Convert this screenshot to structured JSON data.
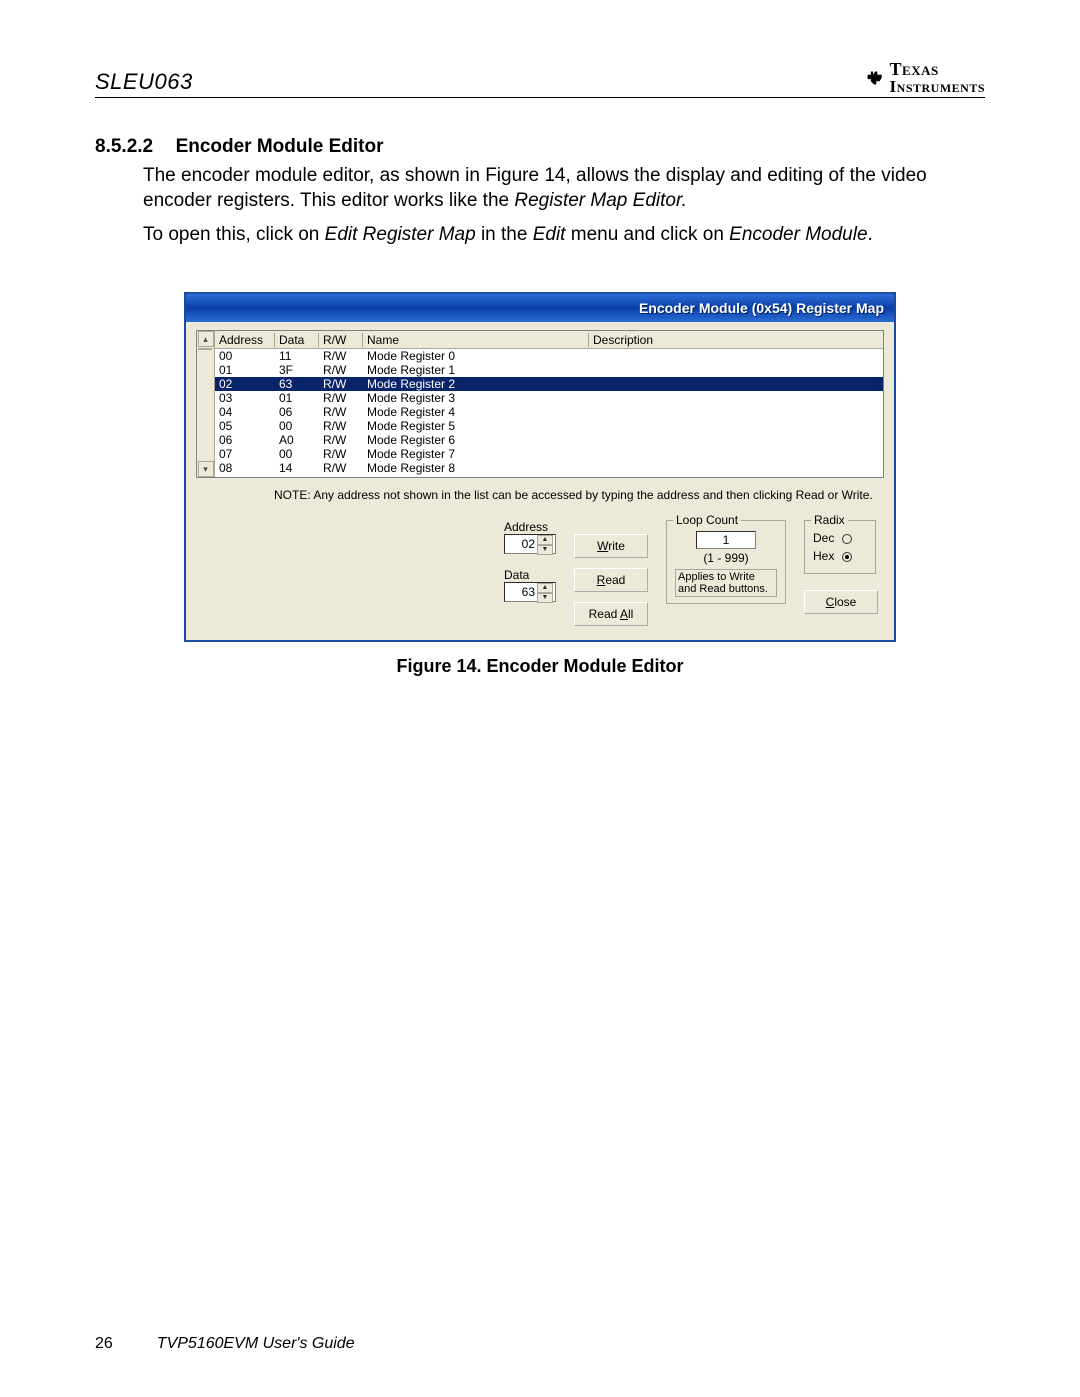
{
  "header": {
    "doc_id": "SLEU063",
    "logo": {
      "line1": "Texas",
      "line2": "Instruments"
    }
  },
  "section": {
    "number": "8.5.2.2",
    "title": "Encoder Module Editor",
    "para1_a": "The encoder module editor, as shown in Figure 14, allows the display and editing of the video encoder registers.  This editor works like the ",
    "para1_ital": "Register Map Editor.",
    "para2_a": "To open this, click on ",
    "para2_i1": "Edit Register Map",
    "para2_b": " in the ",
    "para2_i2": "Edit",
    "para2_c": " menu and click on ",
    "para2_i3": "Encoder Module",
    "para2_d": "."
  },
  "window": {
    "title": "Encoder Module (0x54) Register Map",
    "columns": {
      "address": "Address",
      "data": "Data",
      "rw": "R/W",
      "name": "Name",
      "description": "Description"
    },
    "rows": [
      {
        "addr": "00",
        "data": "11",
        "rw": "R/W",
        "name": "Mode Register 0",
        "selected": false
      },
      {
        "addr": "01",
        "data": "3F",
        "rw": "R/W",
        "name": "Mode Register 1",
        "selected": false
      },
      {
        "addr": "02",
        "data": "63",
        "rw": "R/W",
        "name": "Mode Register 2",
        "selected": true
      },
      {
        "addr": "03",
        "data": "01",
        "rw": "R/W",
        "name": "Mode Register 3",
        "selected": false
      },
      {
        "addr": "04",
        "data": "06",
        "rw": "R/W",
        "name": "Mode Register 4",
        "selected": false
      },
      {
        "addr": "05",
        "data": "00",
        "rw": "R/W",
        "name": "Mode Register 5",
        "selected": false
      },
      {
        "addr": "06",
        "data": "A0",
        "rw": "R/W",
        "name": "Mode Register 6",
        "selected": false
      },
      {
        "addr": "07",
        "data": "00",
        "rw": "R/W",
        "name": "Mode Register 7",
        "selected": false
      },
      {
        "addr": "08",
        "data": "14",
        "rw": "R/W",
        "name": "Mode Register 8",
        "selected": false
      }
    ],
    "note": "NOTE: Any address not shown in the list can be accessed by typing the address and then clicking Read or Write.",
    "controls": {
      "address_label": "Address",
      "address_value": "02",
      "data_label": "Data",
      "data_value": "63",
      "write": "Write",
      "read": "Read",
      "readall": "Read All",
      "loop_title": "Loop Count",
      "loop_value": "1",
      "loop_range": "(1 - 999)",
      "loop_applies": "Applies to Write and Read buttons.",
      "radix_title": "Radix",
      "radix_dec": "Dec",
      "radix_hex": "Hex",
      "radix_selected": "hex",
      "close": "Close"
    }
  },
  "figure_caption": "Figure 14.    Encoder Module Editor",
  "footer": {
    "page": "26",
    "guide": "TVP5160EVM User's Guide"
  },
  "colors": {
    "titlebar_start": "#2a6fd6",
    "titlebar_mid": "#0a3ea8",
    "win_bg": "#ece9d8",
    "selection": "#0a246a",
    "border": "#aca899"
  }
}
